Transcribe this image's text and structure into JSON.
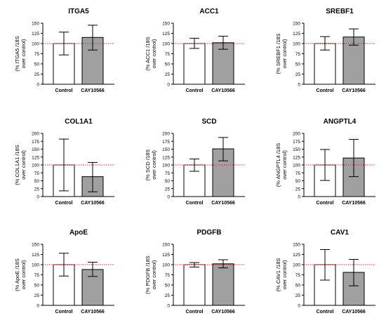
{
  "chart_data": [
    {
      "type": "bar",
      "title": "ITGA5",
      "ylabel_line1": "(% ITGA5 /18S",
      "ylabel_line2": "over control)",
      "categories": [
        "Control",
        "CAY10566"
      ],
      "values": [
        100,
        115
      ],
      "error": [
        [
          72,
          128
        ],
        [
          84,
          145
        ]
      ],
      "yticks": [
        0,
        25,
        50,
        75,
        100,
        125,
        150
      ],
      "ylim": [
        0,
        150
      ],
      "reference_line": 100,
      "colors": {
        "control": "#ffffff",
        "treated": "#a0a0a0",
        "reference": "#e03030"
      }
    },
    {
      "type": "bar",
      "title": "ACC1",
      "ylabel_line1": "(% ACC1 /18S",
      "ylabel_line2": "over control)",
      "categories": [
        "Control",
        "CAY10566"
      ],
      "values": [
        100,
        102
      ],
      "error": [
        [
          88,
          113
        ],
        [
          86,
          118
        ]
      ],
      "yticks": [
        0,
        25,
        50,
        75,
        100,
        125,
        150
      ],
      "ylim": [
        0,
        150
      ],
      "reference_line": 100,
      "colors": {
        "control": "#ffffff",
        "treated": "#a0a0a0",
        "reference": "#e03030"
      }
    },
    {
      "type": "bar",
      "title": "SREBF1",
      "ylabel_line1": "(% SREBF1 /18S",
      "ylabel_line2": "over control)",
      "categories": [
        "Control",
        "CAY10566"
      ],
      "values": [
        100,
        116
      ],
      "error": [
        [
          84,
          117
        ],
        [
          96,
          136
        ]
      ],
      "yticks": [
        0,
        25,
        50,
        75,
        100,
        125,
        150
      ],
      "ylim": [
        0,
        150
      ],
      "reference_line": 100,
      "colors": {
        "control": "#ffffff",
        "treated": "#a0a0a0",
        "reference": "#e03030"
      }
    },
    {
      "type": "bar",
      "title": "COL1A1",
      "ylabel_line1": "(% COL1A1 /18S",
      "ylabel_line2": "over control)",
      "categories": [
        "Control",
        "CAY10566"
      ],
      "values": [
        100,
        63
      ],
      "error": [
        [
          18,
          182
        ],
        [
          15,
          108
        ]
      ],
      "yticks": [
        0,
        25,
        50,
        75,
        100,
        125,
        150,
        175,
        200
      ],
      "ylim": [
        0,
        200
      ],
      "reference_line": 100,
      "colors": {
        "control": "#ffffff",
        "treated": "#a0a0a0",
        "reference": "#e03030"
      }
    },
    {
      "type": "bar",
      "title": "SCD",
      "ylabel_line1": "(% SCD /18S",
      "ylabel_line2": "over control)",
      "categories": [
        "Control",
        "CAY10566"
      ],
      "values": [
        100,
        151
      ],
      "error": [
        [
          80,
          119
        ],
        [
          113,
          187
        ]
      ],
      "yticks": [
        0,
        25,
        50,
        75,
        100,
        125,
        150,
        175,
        200
      ],
      "ylim": [
        0,
        200
      ],
      "reference_line": 100,
      "colors": {
        "control": "#ffffff",
        "treated": "#a0a0a0",
        "reference": "#e03030"
      }
    },
    {
      "type": "bar",
      "title": "ANGPTL4",
      "ylabel_line1": "(% ANGPTL4 /18S",
      "ylabel_line2": "over control)",
      "categories": [
        "Control",
        "CAY10566"
      ],
      "values": [
        100,
        122
      ],
      "error": [
        [
          51,
          149
        ],
        [
          63,
          181
        ]
      ],
      "yticks": [
        0,
        25,
        50,
        75,
        100,
        125,
        150,
        175,
        200
      ],
      "ylim": [
        0,
        200
      ],
      "reference_line": 100,
      "colors": {
        "control": "#ffffff",
        "treated": "#a0a0a0",
        "reference": "#e03030"
      }
    },
    {
      "type": "bar",
      "title": "ApoE",
      "ylabel_line1": "(% ApoE /18S",
      "ylabel_line2": "over control)",
      "categories": [
        "Control",
        "CAY10566"
      ],
      "values": [
        100,
        88
      ],
      "error": [
        [
          72,
          128
        ],
        [
          71,
          106
        ]
      ],
      "yticks": [
        0,
        25,
        50,
        75,
        100,
        125,
        150
      ],
      "ylim": [
        0,
        150
      ],
      "reference_line": 100,
      "colors": {
        "control": "#ffffff",
        "treated": "#a0a0a0",
        "reference": "#e03030"
      }
    },
    {
      "type": "bar",
      "title": "PDGFB",
      "ylabel_line1": "(% PDGFB /18S",
      "ylabel_line2": "over control)",
      "categories": [
        "Control",
        "CAY10566"
      ],
      "values": [
        100,
        102
      ],
      "error": [
        [
          94,
          105
        ],
        [
          92,
          112
        ]
      ],
      "yticks": [
        0,
        25,
        50,
        75,
        100,
        125,
        150
      ],
      "ylim": [
        0,
        150
      ],
      "reference_line": 100,
      "colors": {
        "control": "#ffffff",
        "treated": "#a0a0a0",
        "reference": "#e03030"
      }
    },
    {
      "type": "bar",
      "title": "CAV1",
      "ylabel_line1": "(% CAV1 /18S",
      "ylabel_line2": "over control)",
      "categories": [
        "Control",
        "CAY10566"
      ],
      "values": [
        100,
        81
      ],
      "error": [
        [
          62,
          137
        ],
        [
          48,
          113
        ]
      ],
      "yticks": [
        0,
        25,
        50,
        75,
        100,
        125,
        150
      ],
      "ylim": [
        0,
        150
      ],
      "reference_line": 100,
      "colors": {
        "control": "#ffffff",
        "treated": "#a0a0a0",
        "reference": "#e03030"
      }
    }
  ]
}
